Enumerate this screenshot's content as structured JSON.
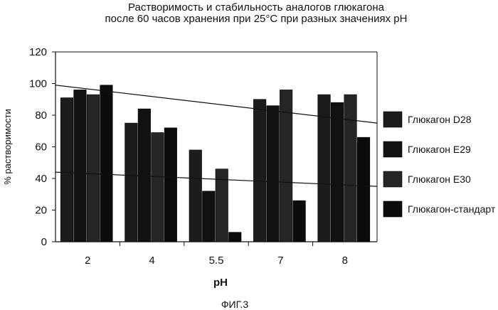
{
  "title": {
    "line1": "Растворимость и стабильность аналогов глюкагона",
    "line2": "после 60 часов хранения при 25°С при разных значениях рН"
  },
  "figure_caption": "ФИГ.3",
  "chart_data": {
    "type": "bar",
    "categories": [
      "2",
      "4",
      "5.5",
      "7",
      "8"
    ],
    "series": [
      {
        "name": "Глюкагон D28",
        "values": [
          91,
          75,
          58,
          90,
          93
        ]
      },
      {
        "name": "Глюкагон E29",
        "values": [
          96,
          84,
          32,
          86,
          88
        ]
      },
      {
        "name": "Глюкагон E30",
        "values": [
          93,
          69,
          46,
          96,
          93
        ]
      },
      {
        "name": "Глюкагон-стандарт",
        "values": [
          99,
          72,
          6,
          26,
          66
        ]
      }
    ],
    "xlabel": "pH",
    "ylabel": "% растворимости",
    "ylim": [
      0,
      120
    ],
    "yticks": [
      "0",
      "20",
      "40",
      "60",
      "80",
      "100",
      "120"
    ],
    "trendlines": [
      {
        "from": 99,
        "to": 75
      },
      {
        "from": 44,
        "to": 35
      }
    ],
    "colors": [
      "#1c1c1c",
      "#111111",
      "#262626",
      "#0c0c0c"
    ],
    "legend_position": "right"
  }
}
